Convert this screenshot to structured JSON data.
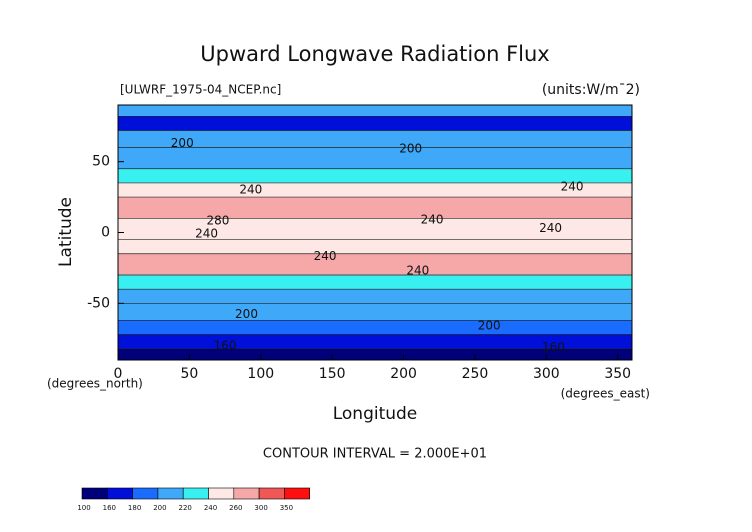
{
  "chart_data": {
    "type": "contour",
    "title": "Upward Longwave Radiation Flux",
    "subtitle_left": "[ULWRF_1975-04_NCEP.nc]",
    "subtitle_right": "(units:W/m¯2)",
    "x_label": "Longitude",
    "y_label": "Latitude",
    "x_unit_label": "(degrees_east)",
    "y_unit_label": "(degrees_north)",
    "footer": "CONTOUR INTERVAL = 2.000E+01",
    "xlim": [
      0,
      360
    ],
    "ylim": [
      -90,
      90
    ],
    "xticks": [
      0,
      50,
      100,
      150,
      200,
      250,
      300,
      350
    ],
    "yticks": [
      -50,
      0,
      50
    ],
    "bands": {
      "lat_edges": [
        90,
        82,
        72,
        60,
        45,
        35,
        25,
        10,
        -5,
        -15,
        -30,
        -40,
        -50,
        -62,
        -72,
        -82,
        -90
      ],
      "values": [
        210,
        175,
        200,
        215,
        230,
        250,
        270,
        250,
        240,
        265,
        235,
        215,
        205,
        190,
        170,
        150
      ]
    },
    "contour_labels": [
      {
        "text": "200",
        "x": 45,
        "y": 63
      },
      {
        "text": "200",
        "x": 205,
        "y": 59
      },
      {
        "text": "240",
        "x": 93,
        "y": 30
      },
      {
        "text": "240",
        "x": 318,
        "y": 32
      },
      {
        "text": "280",
        "x": 70,
        "y": 8
      },
      {
        "text": "240",
        "x": 62,
        "y": -1
      },
      {
        "text": "240",
        "x": 220,
        "y": 9
      },
      {
        "text": "240",
        "x": 303,
        "y": 3
      },
      {
        "text": "240",
        "x": 145,
        "y": -17
      },
      {
        "text": "240",
        "x": 210,
        "y": -27
      },
      {
        "text": "200",
        "x": 90,
        "y": -58
      },
      {
        "text": "200",
        "x": 260,
        "y": -66
      },
      {
        "text": "160",
        "x": 75,
        "y": -80
      },
      {
        "text": "160",
        "x": 305,
        "y": -81
      }
    ],
    "colorbar": {
      "levels": [
        100,
        160,
        180,
        200,
        220,
        240,
        260,
        300,
        350
      ],
      "colors": [
        "#00007a",
        "#0010d8",
        "#1a6cff",
        "#40a8f8",
        "#38f0f0",
        "#fde8e6",
        "#f6a8a8",
        "#f05858",
        "#ff1010"
      ]
    }
  }
}
